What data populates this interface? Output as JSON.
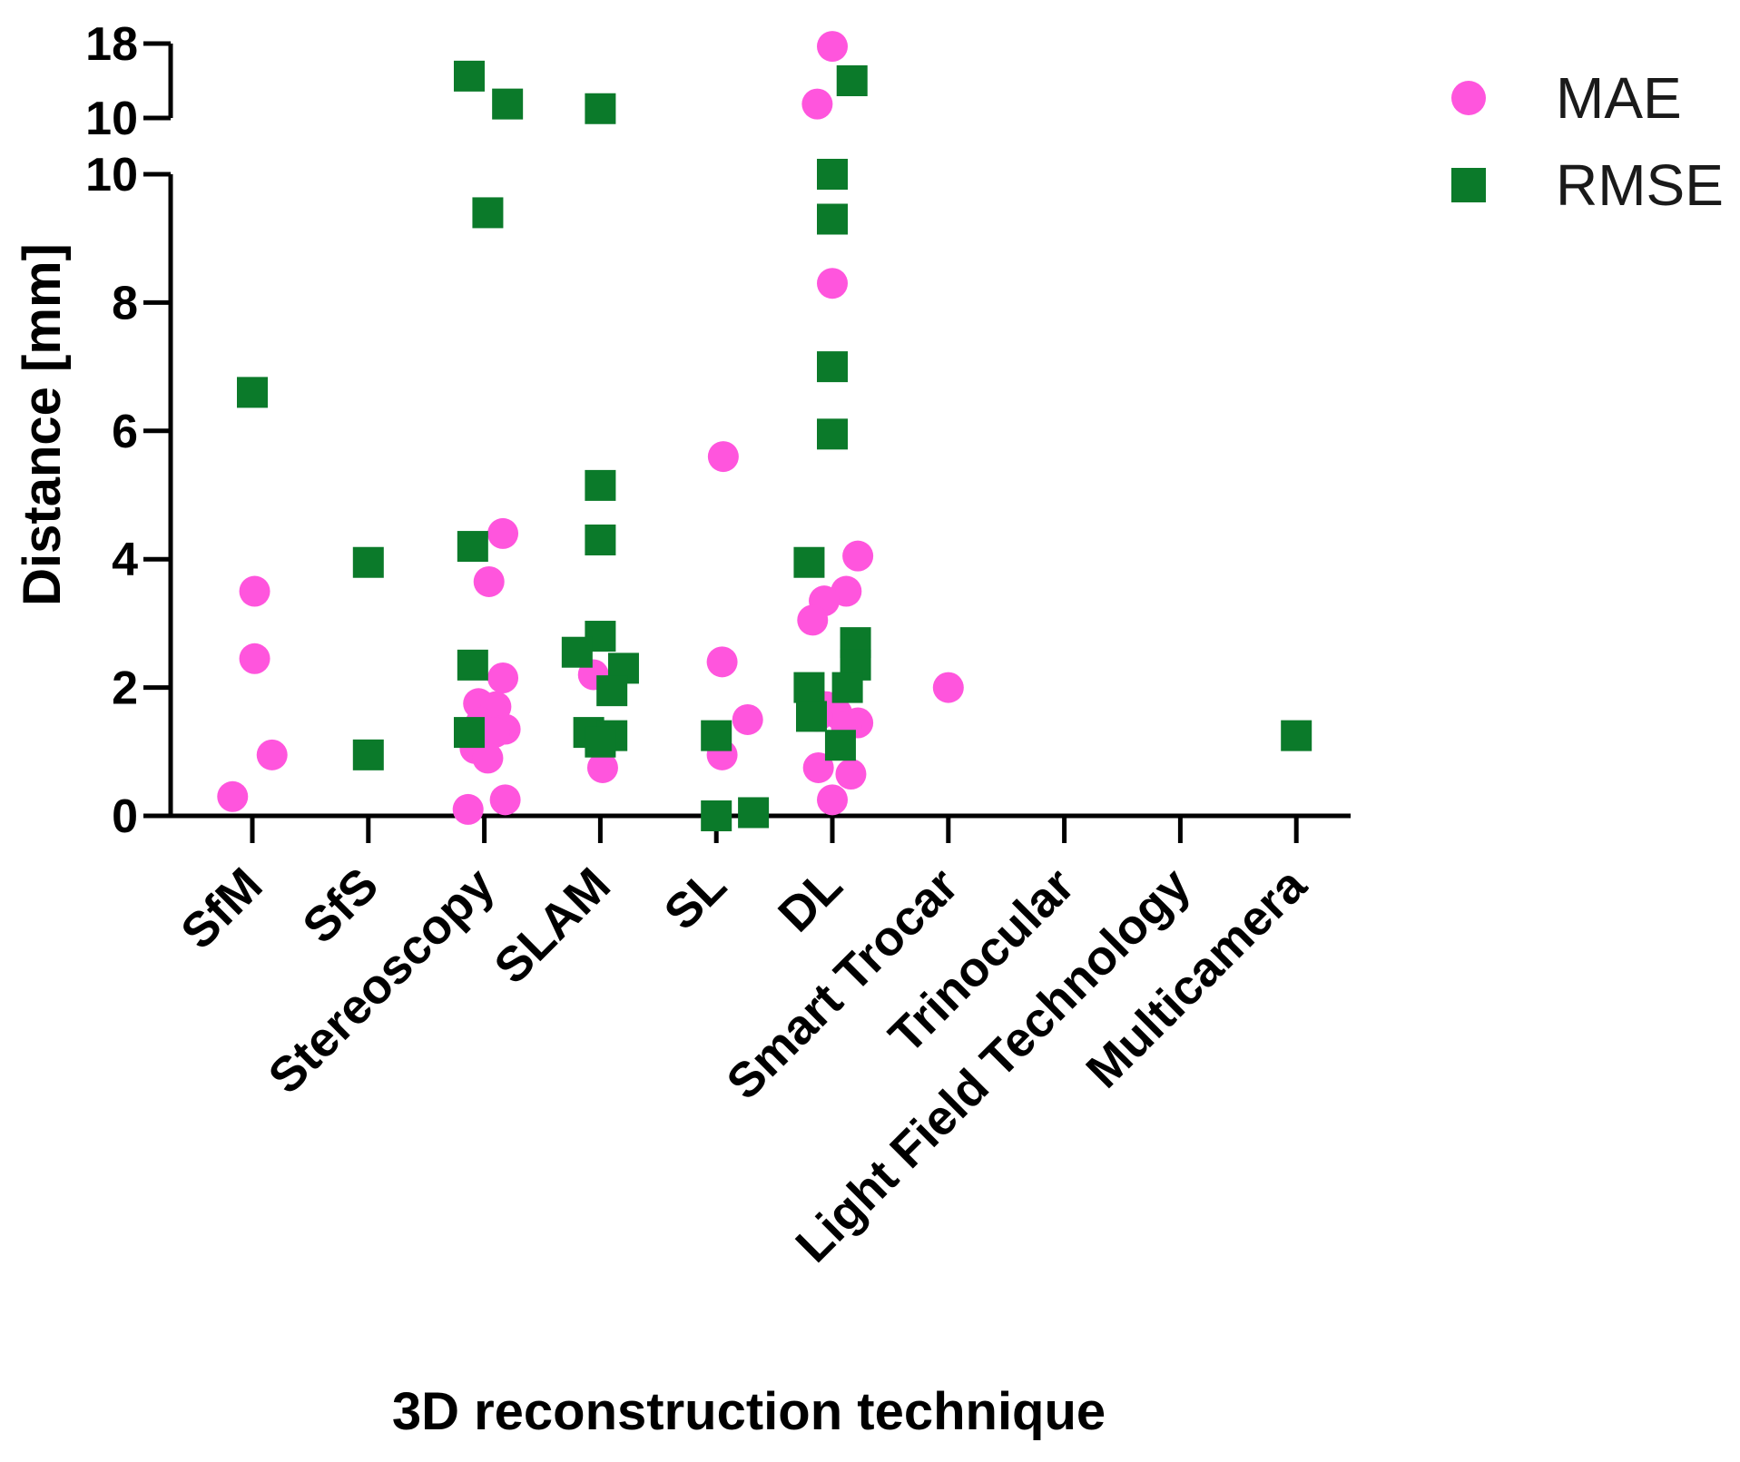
{
  "chart_data": {
    "type": "scatter",
    "xlabel": "3D reconstruction technique",
    "ylabel": "Distance [mm]",
    "categories": [
      "SfM",
      "SfS",
      "Stereoscopy",
      "SLAM",
      "SL",
      "DL",
      "Smart Trocar",
      "Trinocular",
      "Light Field Technology",
      "Multicamera"
    ],
    "y_axis": {
      "segments": [
        {
          "range": [
            0,
            10
          ],
          "ticks": [
            0,
            2,
            4,
            6,
            8,
            10
          ]
        },
        {
          "range": [
            10,
            18
          ],
          "ticks": [
            10,
            18
          ]
        }
      ],
      "broken": true
    },
    "legend": {
      "position": "top-right"
    },
    "series": [
      {
        "name": "MAE",
        "marker": "circle",
        "color": "#ff55dd",
        "points": [
          {
            "category": "SfM",
            "y": 0.3,
            "jitter": -0.17
          },
          {
            "category": "SfM",
            "y": 3.5,
            "jitter": 0.02
          },
          {
            "category": "SfM",
            "y": 2.45,
            "jitter": 0.02
          },
          {
            "category": "SfM",
            "y": 0.95,
            "jitter": 0.17
          },
          {
            "category": "Stereoscopy",
            "y": 4.4,
            "jitter": 0.16
          },
          {
            "category": "Stereoscopy",
            "y": 3.65,
            "jitter": 0.04
          },
          {
            "category": "Stereoscopy",
            "y": 2.15,
            "jitter": 0.16
          },
          {
            "category": "Stereoscopy",
            "y": 1.75,
            "jitter": -0.05
          },
          {
            "category": "Stereoscopy",
            "y": 1.7,
            "jitter": 0.1
          },
          {
            "category": "Stereoscopy",
            "y": 1.45,
            "jitter": -0.03
          },
          {
            "category": "Stereoscopy",
            "y": 1.35,
            "jitter": 0.18
          },
          {
            "category": "Stereoscopy",
            "y": 1.3,
            "jitter": 0.09
          },
          {
            "category": "Stereoscopy",
            "y": 1.05,
            "jitter": -0.08
          },
          {
            "category": "Stereoscopy",
            "y": 0.9,
            "jitter": 0.03
          },
          {
            "category": "Stereoscopy",
            "y": 0.25,
            "jitter": 0.18
          },
          {
            "category": "Stereoscopy",
            "y": 0.1,
            "jitter": -0.14
          },
          {
            "category": "SLAM",
            "y": 2.2,
            "jitter": -0.06
          },
          {
            "category": "SLAM",
            "y": 0.75,
            "jitter": 0.02
          },
          {
            "category": "SL",
            "y": 5.6,
            "jitter": 0.06
          },
          {
            "category": "SL",
            "y": 2.4,
            "jitter": 0.05
          },
          {
            "category": "SL",
            "y": 1.5,
            "jitter": 0.27
          },
          {
            "category": "SL",
            "y": 0.95,
            "jitter": 0.05
          },
          {
            "category": "DL",
            "y": 17.7,
            "jitter": 0.0
          },
          {
            "category": "DL",
            "y": 11.5,
            "jitter": -0.13
          },
          {
            "category": "DL",
            "y": 8.3,
            "jitter": 0.0
          },
          {
            "category": "DL",
            "y": 4.05,
            "jitter": 0.22
          },
          {
            "category": "DL",
            "y": 3.5,
            "jitter": 0.12
          },
          {
            "category": "DL",
            "y": 3.35,
            "jitter": -0.07
          },
          {
            "category": "DL",
            "y": 3.05,
            "jitter": -0.17
          },
          {
            "category": "DL",
            "y": 1.8,
            "jitter": -0.17
          },
          {
            "category": "DL",
            "y": 1.7,
            "jitter": -0.05
          },
          {
            "category": "DL",
            "y": 1.6,
            "jitter": 0.04
          },
          {
            "category": "DL",
            "y": 1.55,
            "jitter": -0.13
          },
          {
            "category": "DL",
            "y": 1.45,
            "jitter": 0.22
          },
          {
            "category": "DL",
            "y": 1.4,
            "jitter": 0.12
          },
          {
            "category": "DL",
            "y": 0.75,
            "jitter": -0.12
          },
          {
            "category": "DL",
            "y": 0.65,
            "jitter": 0.16
          },
          {
            "category": "DL",
            "y": 0.25,
            "jitter": 0.0
          },
          {
            "category": "Smart Trocar",
            "y": 2.0,
            "jitter": 0.0
          }
        ]
      },
      {
        "name": "RMSE",
        "marker": "square",
        "color": "#0b7a2a",
        "points": [
          {
            "category": "SfM",
            "y": 6.6,
            "jitter": 0.0
          },
          {
            "category": "SfS",
            "y": 3.95,
            "jitter": 0.0
          },
          {
            "category": "SfS",
            "y": 0.95,
            "jitter": 0.0
          },
          {
            "category": "Stereoscopy",
            "y": 14.5,
            "jitter": -0.13
          },
          {
            "category": "Stereoscopy",
            "y": 11.5,
            "jitter": 0.2
          },
          {
            "category": "Stereoscopy",
            "y": 9.4,
            "jitter": 0.03
          },
          {
            "category": "Stereoscopy",
            "y": 4.2,
            "jitter": -0.1
          },
          {
            "category": "Stereoscopy",
            "y": 2.35,
            "jitter": -0.1
          },
          {
            "category": "Stereoscopy",
            "y": 1.3,
            "jitter": -0.13
          },
          {
            "category": "SLAM",
            "y": 11.0,
            "jitter": 0.0
          },
          {
            "category": "SLAM",
            "y": 5.15,
            "jitter": 0.0
          },
          {
            "category": "SLAM",
            "y": 4.3,
            "jitter": 0.0
          },
          {
            "category": "SLAM",
            "y": 2.8,
            "jitter": 0.0
          },
          {
            "category": "SLAM",
            "y": 2.55,
            "jitter": -0.2
          },
          {
            "category": "SLAM",
            "y": 2.3,
            "jitter": 0.2
          },
          {
            "category": "SLAM",
            "y": 1.95,
            "jitter": 0.1
          },
          {
            "category": "SLAM",
            "y": 1.3,
            "jitter": -0.1
          },
          {
            "category": "SLAM",
            "y": 1.25,
            "jitter": 0.1
          },
          {
            "category": "SLAM",
            "y": 1.15,
            "jitter": 0.0
          },
          {
            "category": "SL",
            "y": 1.25,
            "jitter": 0.0
          },
          {
            "category": "SL",
            "y": 0.0,
            "jitter": 0.0
          },
          {
            "category": "SL",
            "y": 0.05,
            "jitter": 0.32
          },
          {
            "category": "DL",
            "y": 14.0,
            "jitter": 0.17
          },
          {
            "category": "DL",
            "y": 10.0,
            "jitter": 0.0
          },
          {
            "category": "DL",
            "y": 9.3,
            "jitter": 0.0
          },
          {
            "category": "DL",
            "y": 7.0,
            "jitter": 0.0
          },
          {
            "category": "DL",
            "y": 5.95,
            "jitter": 0.0
          },
          {
            "category": "DL",
            "y": 3.95,
            "jitter": -0.2
          },
          {
            "category": "DL",
            "y": 2.7,
            "jitter": 0.2
          },
          {
            "category": "DL",
            "y": 2.35,
            "jitter": 0.2
          },
          {
            "category": "DL",
            "y": 2.0,
            "jitter": -0.2
          },
          {
            "category": "DL",
            "y": 2.0,
            "jitter": 0.13
          },
          {
            "category": "DL",
            "y": 1.55,
            "jitter": -0.18
          },
          {
            "category": "DL",
            "y": 1.1,
            "jitter": 0.07
          },
          {
            "category": "Multicamera",
            "y": 1.25,
            "jitter": 0.0
          }
        ]
      }
    ]
  }
}
